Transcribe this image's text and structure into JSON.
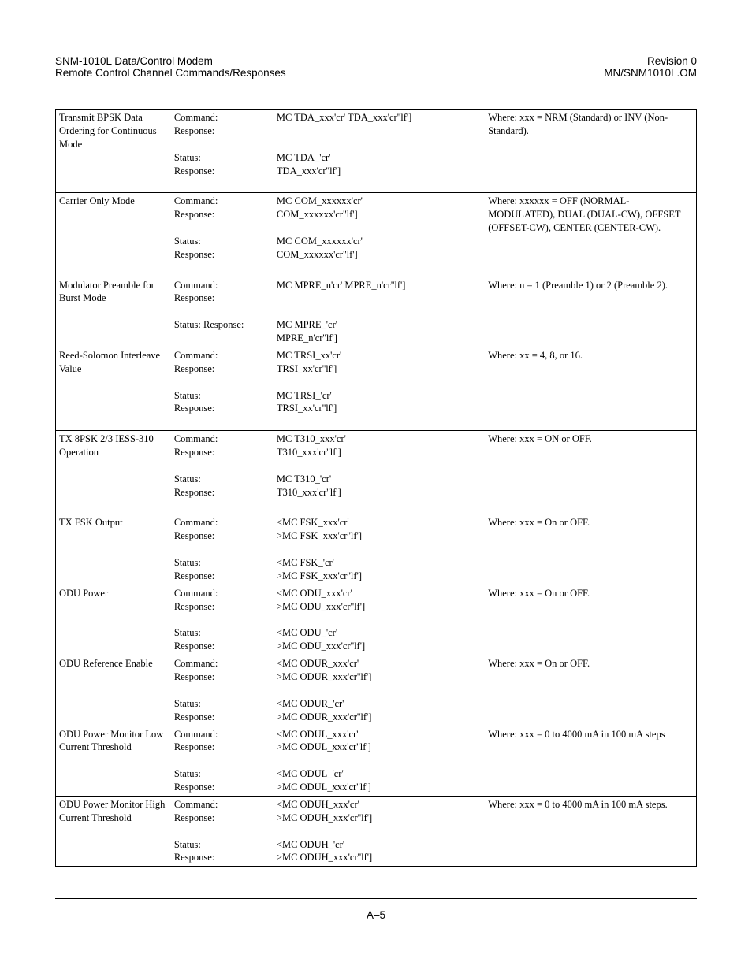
{
  "header": {
    "left_line1": "SNM-1010L Data/Control Modem",
    "left_line2": "Remote Control Channel Commands/Responses",
    "right_line1": "Revision 0",
    "right_line2": "MN/SNM1010L.OM"
  },
  "page_number": "A–5",
  "columns": [
    "name",
    "label",
    "syntax",
    "notes"
  ],
  "rows": [
    {
      "name": "Transmit BPSK Data Ordering for Continuous Mode",
      "label": "Command:\nResponse:\n\nStatus:\nResponse:",
      "syntax": "MC TDA_xxx'cr'  TDA_xxx'cr''lf']\n\n\nMC TDA_'cr'\nTDA_xxx'cr''lf']",
      "notes": "Where: xxx = NRM (Standard) or INV (Non-Standard).",
      "trailing_blank": true
    },
    {
      "name": "Carrier Only Mode",
      "label": "Command:\nResponse:\n\nStatus:\nResponse:",
      "syntax": "MC COM_xxxxxx'cr'\nCOM_xxxxxx'cr''lf']\n\nMC COM_xxxxxx'cr'\nCOM_xxxxxx'cr''lf']",
      "notes": "Where: xxxxxx = OFF (NORMAL-MODULATED), DUAL (DUAL-CW), OFFSET (OFFSET-CW), CENTER (CENTER-CW).",
      "trailing_blank": true
    },
    {
      "name": "Modulator Preamble for Burst Mode",
      "label": "Command:\nResponse:\n\nStatus: Response:",
      "syntax": "MC MPRE_n'cr'  MPRE_n'cr''lf']\n\n\nMC MPRE_'cr'\nMPRE_n'cr''lf']",
      "notes": "Where: n = 1 (Preamble 1) or 2 (Preamble 2).",
      "trailing_blank": true
    },
    {
      "name": "Reed-Solomon Interleave Value",
      "label": "Command:\nResponse:\n\nStatus:\nResponse:",
      "syntax": "MC TRSI_xx'cr'\nTRSI_xx'cr''lf']\n\nMC TRSI_'cr'\nTRSI_xx'cr''lf']",
      "notes": "Where: xx = 4, 8, or 16.",
      "trailing_blank": true
    },
    {
      "name": "TX 8PSK 2/3 IESS-310 Operation",
      "label": "Command:\nResponse:\n\nStatus:\nResponse:",
      "syntax": "MC T310_xxx'cr'\nT310_xxx'cr''lf']\n\nMC T310_'cr'\nT310_xxx'cr''lf']",
      "notes": "Where: xxx = ON or OFF.",
      "trailing_blank": true
    },
    {
      "name": "TX FSK Output",
      "label": "Command:\nResponse:\n\nStatus:\nResponse:",
      "syntax": "<MC FSK_xxx'cr'\n>MC FSK_xxx'cr''lf']\n\n<MC FSK_'cr'\n>MC FSK_xxx'cr''lf']",
      "notes": "Where: xxx = On or OFF.",
      "trailing_blank": false
    },
    {
      "name": "ODU Power",
      "label": "Command:\nResponse:\n\nStatus:\nResponse:",
      "syntax": "<MC ODU_xxx'cr'\n>MC ODU_xxx'cr''lf']\n\n<MC ODU_'cr'\n>MC ODU_xxx'cr''lf']",
      "notes": "Where: xxx = On or OFF.",
      "trailing_blank": false
    },
    {
      "name": "ODU Reference Enable",
      "label": "Command:\nResponse:\n\nStatus:\nResponse:",
      "syntax": "<MC ODUR_xxx'cr'\n>MC ODUR_xxx'cr''lf']\n\n<MC ODUR_'cr'\n>MC ODUR_xxx'cr''lf']",
      "notes": "Where: xxx = On or OFF.",
      "trailing_blank": false
    },
    {
      "name": "ODU Power Monitor Low Current Threshold",
      "label": "Command:\nResponse:\n\nStatus:\nResponse:",
      "syntax": "<MC ODUL_xxx'cr'\n>MC ODUL_xxx'cr''lf']\n\n<MC ODUL_'cr'\n>MC ODUL_xxx'cr''lf']",
      "notes": "Where: xxx = 0 to 4000 mA in 100 mA steps",
      "trailing_blank": false
    },
    {
      "name": "ODU Power Monitor High Current Threshold",
      "label": "Command:\nResponse:\n\nStatus:\nResponse:",
      "syntax": "<MC ODUH_xxx'cr'\n>MC ODUH_xxx'cr''lf']\n\n<MC ODUH_'cr'\n>MC ODUH_xxx'cr''lf']",
      "notes": "Where: xxx = 0 to 4000 mA in 100 mA steps.",
      "trailing_blank": false
    }
  ]
}
